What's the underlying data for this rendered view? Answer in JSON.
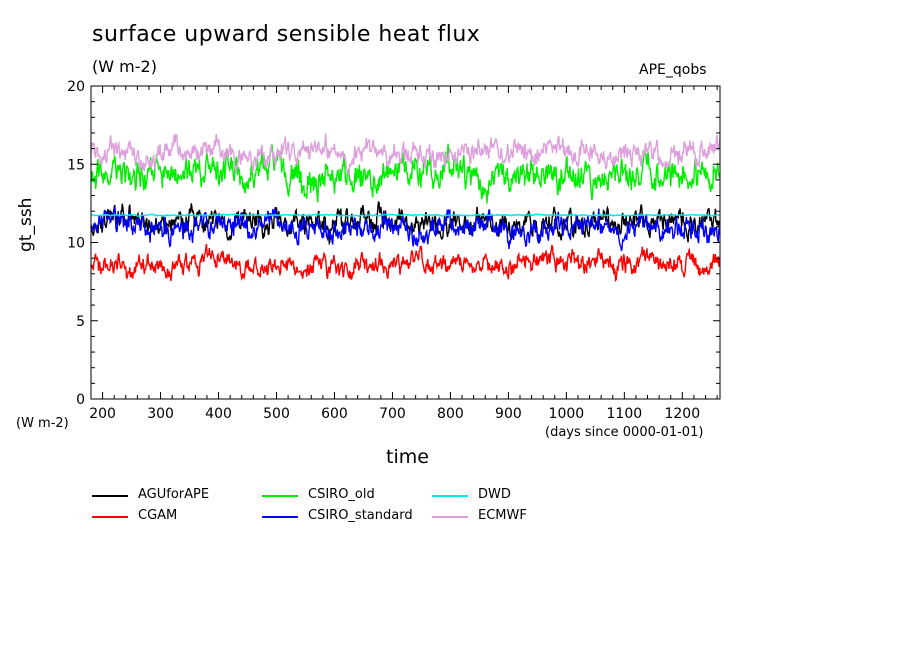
{
  "chart_data": {
    "type": "line",
    "title": "surface upward sensible heat flux",
    "units": "(W m-2)",
    "experiment": "APE_qobs",
    "xlabel": "time",
    "x_units": "(days since 0000-01-01)",
    "ylabel": "gt_ssh",
    "y_units": "(W m-2)",
    "xlim": [
      180,
      1265
    ],
    "ylim": [
      0,
      20
    ],
    "x_ticks": [
      "200",
      "300",
      "400",
      "500",
      "600",
      "700",
      "800",
      "900",
      "1000",
      "1100",
      "1200"
    ],
    "y_ticks": [
      "0",
      "5",
      "10",
      "15",
      "20"
    ],
    "legend_position": "bottom",
    "series": [
      {
        "name": "AGUforAPE",
        "color": "#000000",
        "mean": 11.3,
        "amplitude": 0.9
      },
      {
        "name": "CGAM",
        "color": "#ff0000",
        "mean": 8.6,
        "amplitude": 0.8
      },
      {
        "name": "CSIRO_old",
        "color": "#00ee00",
        "mean": 14.3,
        "amplitude": 1.2
      },
      {
        "name": "CSIRO_standard",
        "color": "#0000ff",
        "mean": 11.0,
        "amplitude": 0.9
      },
      {
        "name": "DWD",
        "color": "#00e5ee",
        "mean": 11.75,
        "amplitude": 0.05
      },
      {
        "name": "ECMWF",
        "color": "#dda0dd",
        "mean": 15.8,
        "amplitude": 0.9
      }
    ]
  }
}
